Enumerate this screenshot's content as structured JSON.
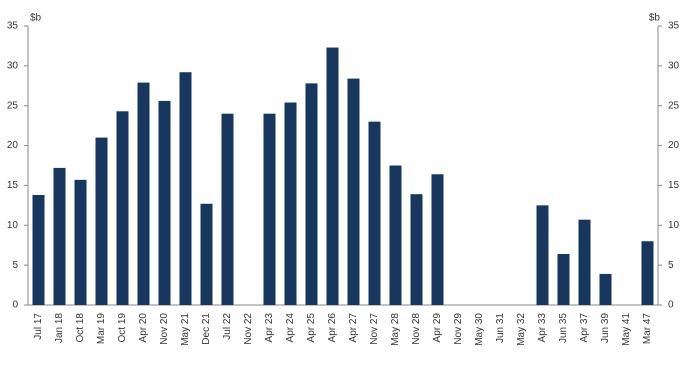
{
  "chart_data": {
    "type": "bar",
    "y_label": "$b",
    "y2_label": "$b",
    "categories": [
      "Jul 17",
      "Jan 18",
      "Oct 18",
      "Mar 19",
      "Oct 19",
      "Apr 20",
      "Nov 20",
      "May 21",
      "Dec 21",
      "Jul 22",
      "Nov 22",
      "Apr 23",
      "Apr 24",
      "Apr 25",
      "Apr 26",
      "Apr 27",
      "Nov 27",
      "May 28",
      "Nov 28",
      "Apr 29",
      "Nov 29",
      "May 30",
      "Jun 31",
      "May 32",
      "Apr 33",
      "Jun 35",
      "Apr 37",
      "Jun 39",
      "May 41",
      "Mar 47"
    ],
    "values": [
      13.8,
      17.2,
      15.7,
      21.0,
      24.3,
      27.9,
      25.6,
      29.2,
      12.7,
      24.0,
      0,
      24.0,
      25.4,
      27.8,
      32.3,
      28.4,
      23.0,
      17.5,
      13.9,
      16.4,
      0,
      0,
      0,
      0,
      12.5,
      6.4,
      10.7,
      3.9,
      0,
      8.0
    ],
    "color": "#17375e",
    "ylim": [
      0,
      35
    ],
    "yticks": [
      0,
      5,
      10,
      15,
      20,
      25,
      30,
      35
    ],
    "y2lim": [
      0,
      35
    ],
    "y2ticks": [
      0,
      5,
      10,
      15,
      20,
      25,
      30,
      35
    ],
    "grid": false
  }
}
